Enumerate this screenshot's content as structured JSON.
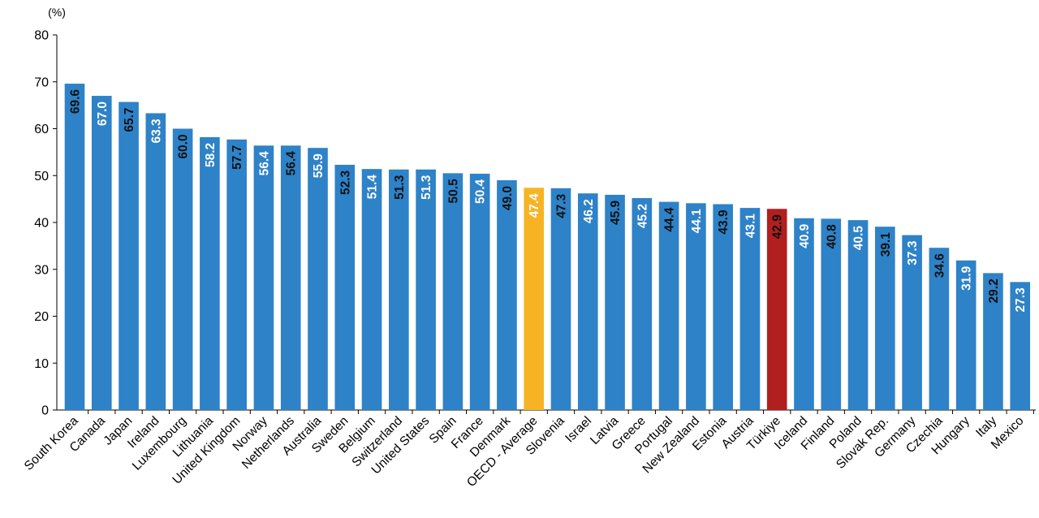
{
  "chart_data": {
    "type": "bar",
    "unit_label": "(%)",
    "ylim": [
      0,
      80
    ],
    "yticks": [
      0,
      10,
      20,
      30,
      40,
      50,
      60,
      70,
      80
    ],
    "grid": false,
    "categories": [
      "South Korea",
      "Canada",
      "Japan",
      "Ireland",
      "Luxembourg",
      "Lithuania",
      "United Kingdom",
      "Norway",
      "Netherlands",
      "Australia",
      "Sweden",
      "Belgium",
      "Switzerland",
      "United States",
      "Spain",
      "France",
      "Denmark",
      "OECD - Average",
      "Slovenia",
      "Israel",
      "Latvia",
      "Greece",
      "Portugal",
      "New Zealand",
      "Estonia",
      "Austria",
      "Türkiye",
      "Iceland",
      "Finland",
      "Poland",
      "Slovak Rep.",
      "Germany",
      "Czechia",
      "Hungary",
      "Italy",
      "Mexico"
    ],
    "values": [
      69.6,
      67.0,
      65.7,
      63.3,
      60.0,
      58.2,
      57.7,
      56.4,
      56.4,
      55.9,
      52.3,
      51.4,
      51.3,
      51.3,
      50.5,
      50.4,
      49.0,
      47.4,
      47.3,
      46.2,
      45.9,
      45.2,
      44.4,
      44.1,
      43.9,
      43.1,
      42.9,
      40.9,
      40.8,
      40.5,
      39.1,
      37.3,
      34.6,
      31.9,
      29.2,
      27.3
    ],
    "value_labels": [
      "69.6",
      "67.0",
      "65.7",
      "63.3",
      "60.0",
      "58.2",
      "57.7",
      "56.4",
      "56.4",
      "55.9",
      "52.3",
      "51.4",
      "51.3",
      "51.3",
      "50.5",
      "50.4",
      "49.0",
      "47.4",
      "47.3",
      "46.2",
      "45.9",
      "45.2",
      "44.4",
      "44.1",
      "43.9",
      "43.1",
      "42.9",
      "40.9",
      "40.8",
      "40.5",
      "39.1",
      "37.3",
      "34.6",
      "31.9",
      "29.2",
      "27.3"
    ],
    "colors": {
      "default_bar": "#2e82c8",
      "highlight_average": "#f6b425",
      "highlight_turkiye": "#b21f1f",
      "label_dark": "#111111",
      "label_light": "#ffffff",
      "axis": "#000000"
    },
    "bar_color_keys": [
      "default_bar",
      "default_bar",
      "default_bar",
      "default_bar",
      "default_bar",
      "default_bar",
      "default_bar",
      "default_bar",
      "default_bar",
      "default_bar",
      "default_bar",
      "default_bar",
      "default_bar",
      "default_bar",
      "default_bar",
      "default_bar",
      "default_bar",
      "highlight_average",
      "default_bar",
      "default_bar",
      "default_bar",
      "default_bar",
      "default_bar",
      "default_bar",
      "default_bar",
      "default_bar",
      "highlight_turkiye",
      "default_bar",
      "default_bar",
      "default_bar",
      "default_bar",
      "default_bar",
      "default_bar",
      "default_bar",
      "default_bar",
      "default_bar"
    ],
    "label_color_keys": [
      "label_dark",
      "label_light",
      "label_dark",
      "label_light",
      "label_dark",
      "label_light",
      "label_dark",
      "label_light",
      "label_dark",
      "label_light",
      "label_dark",
      "label_light",
      "label_dark",
      "label_light",
      "label_dark",
      "label_light",
      "label_dark",
      "label_light",
      "label_dark",
      "label_light",
      "label_dark",
      "label_light",
      "label_dark",
      "label_light",
      "label_dark",
      "label_light",
      "label_dark",
      "label_light",
      "label_dark",
      "label_light",
      "label_dark",
      "label_light",
      "label_dark",
      "label_light",
      "label_dark",
      "label_light"
    ]
  }
}
